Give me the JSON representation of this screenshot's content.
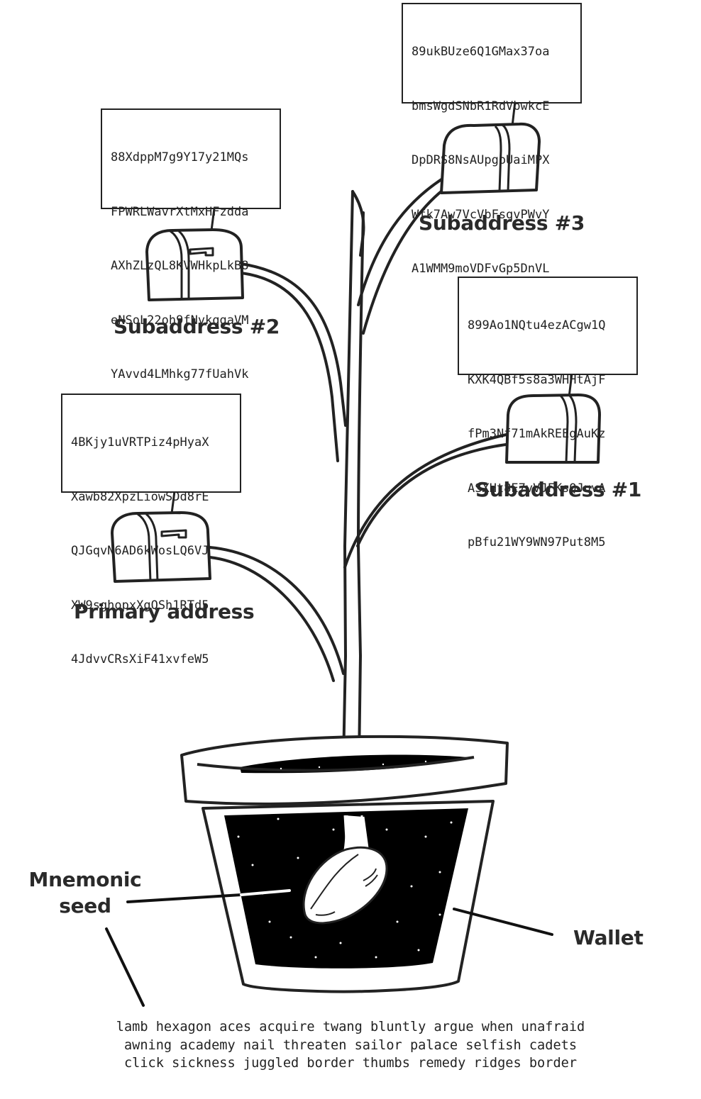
{
  "addresses": {
    "primary": {
      "label": "Primary address",
      "lines": [
        "4BKjy1uVRTPiz4pHyaX",
        "Xawb82XpzLiowSDd8rE",
        "QJGqvN6AD6kWosLQ6VJ",
        "XW9sghopxXgQSh1RTd5",
        "4JdvvCRsXiF41xvfeW5"
      ]
    },
    "sub1": {
      "label": "Subaddress #1",
      "lines": [
        "899Ao1NQtu4ezACgw1Q",
        "KXK4QBf5s8a3WHHtAjF",
        "fPm3Nf71mAkREEgAuKz",
        "ASXHt8E7vVJFKsQJuvA",
        "pBfu21WY9WN97Put8M5"
      ]
    },
    "sub2": {
      "label": "Subaddress #2",
      "lines": [
        "88XdppM7g9Y17y21MQs",
        "FPWRLWavrXtMxHFzdda",
        "AXhZLzQL8KVWHkpLkB8",
        "eNSoL22oh9fNvkqgaVM",
        "YAvvd4LMhkg77fUahVk"
      ]
    },
    "sub3": {
      "label": "Subaddress #3",
      "lines": [
        "89ukBUze6Q1GMax37oa",
        "bmsWgdSNbR1RdVbwkcE",
        "DpDRS8NsAUpgoUaiMPX",
        "Wfk7Aw7VcVbFsqvPWvY",
        "A1WMM9moVDFvGp5DnVL"
      ]
    }
  },
  "seed": {
    "label_line1": "Mnemonic",
    "label_line2": "seed",
    "words": [
      "lamb hexagon aces acquire twang bluntly argue when unafraid",
      "awning academy nail threaten sailor palace selfish cadets",
      "click sickness juggled border thumbs remedy ridges border"
    ]
  },
  "wallet": {
    "label": "Wallet"
  },
  "icons": [
    "mailbox-icon",
    "plant-stem",
    "flower-pot",
    "seed-icon"
  ]
}
